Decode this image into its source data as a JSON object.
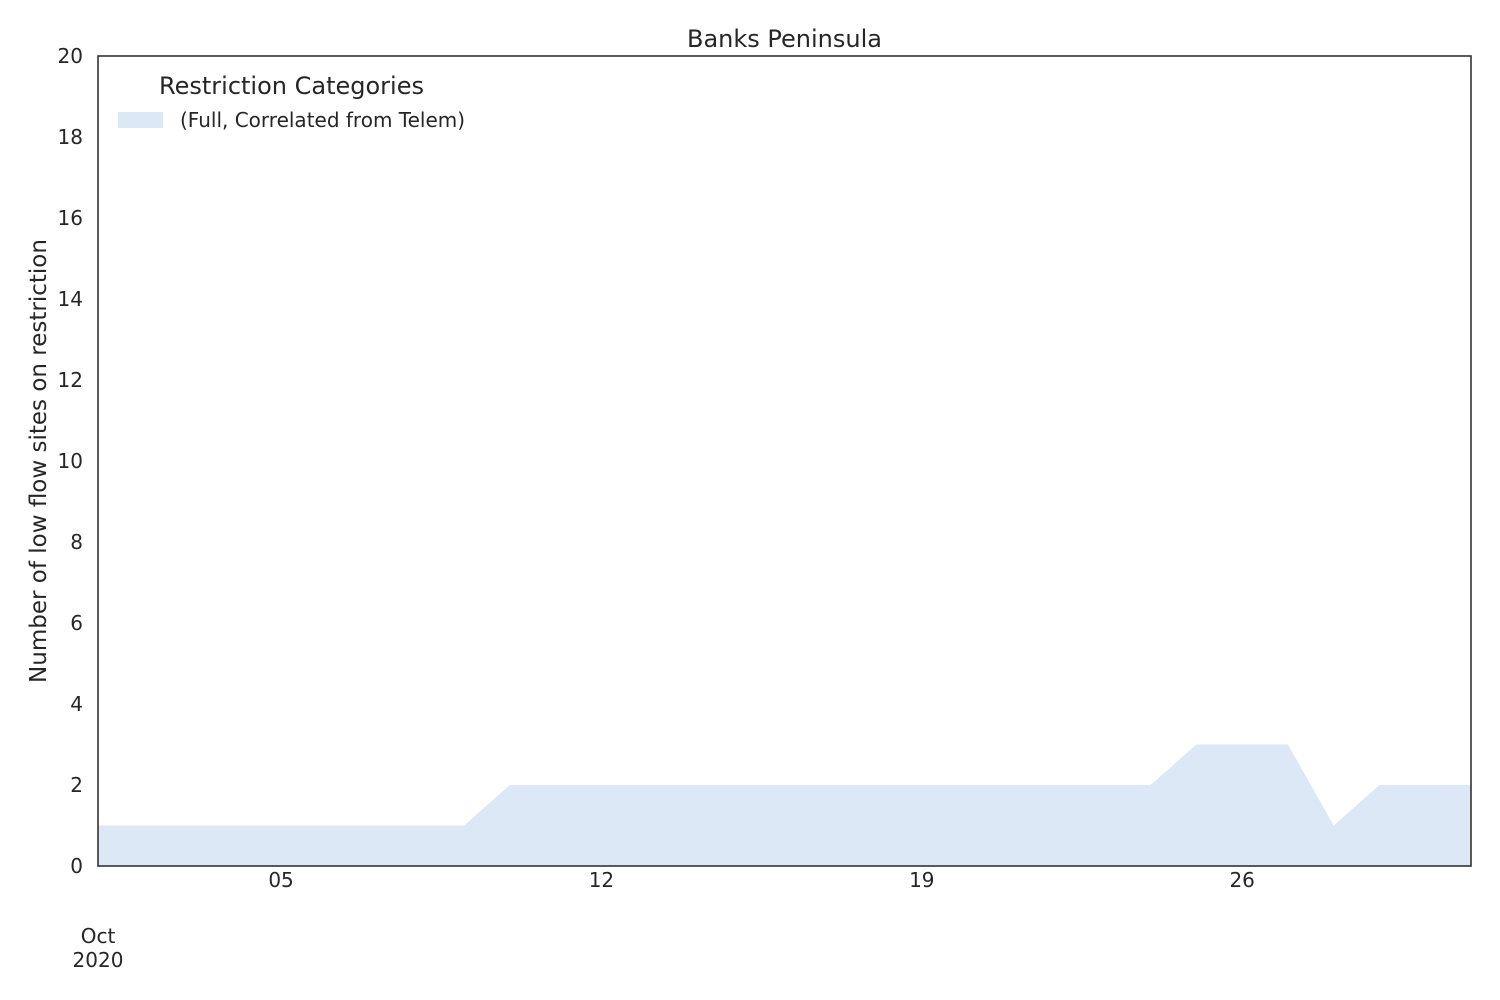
{
  "chart_data": {
    "type": "area",
    "title": "Banks Peninsula",
    "xlabel": "",
    "ylabel": "Number of low flow sites on restriction",
    "ylim": [
      0,
      20
    ],
    "xlim": [
      "2020-10-01",
      "2020-10-31"
    ],
    "y_ticks": [
      0,
      2,
      4,
      6,
      8,
      10,
      12,
      14,
      16,
      18,
      20
    ],
    "x_ticks": [
      {
        "date": "2020-10-05",
        "label": "05"
      },
      {
        "date": "2020-10-12",
        "label": "12"
      },
      {
        "date": "2020-10-19",
        "label": "19"
      },
      {
        "date": "2020-10-26",
        "label": "26"
      }
    ],
    "x_offset_label": {
      "month": "Oct",
      "year": "2020"
    },
    "grid": false,
    "legend": {
      "title": "Restriction Categories",
      "placement": "top-left"
    },
    "x": [
      "2020-10-01",
      "2020-10-02",
      "2020-10-03",
      "2020-10-04",
      "2020-10-05",
      "2020-10-06",
      "2020-10-07",
      "2020-10-08",
      "2020-10-09",
      "2020-10-10",
      "2020-10-11",
      "2020-10-12",
      "2020-10-13",
      "2020-10-14",
      "2020-10-15",
      "2020-10-16",
      "2020-10-17",
      "2020-10-18",
      "2020-10-19",
      "2020-10-20",
      "2020-10-21",
      "2020-10-22",
      "2020-10-23",
      "2020-10-24",
      "2020-10-25",
      "2020-10-26",
      "2020-10-27",
      "2020-10-28",
      "2020-10-29",
      "2020-10-30",
      "2020-10-31"
    ],
    "series": [
      {
        "name": "(Full, Correlated from Telem)",
        "color": "#dce8f5",
        "values": [
          1,
          1,
          1,
          1,
          1,
          1,
          1,
          1,
          1,
          2,
          2,
          2,
          2,
          2,
          2,
          2,
          2,
          2,
          2,
          2,
          2,
          2,
          2,
          2,
          3,
          3,
          3,
          1,
          2,
          2,
          2
        ]
      }
    ]
  }
}
